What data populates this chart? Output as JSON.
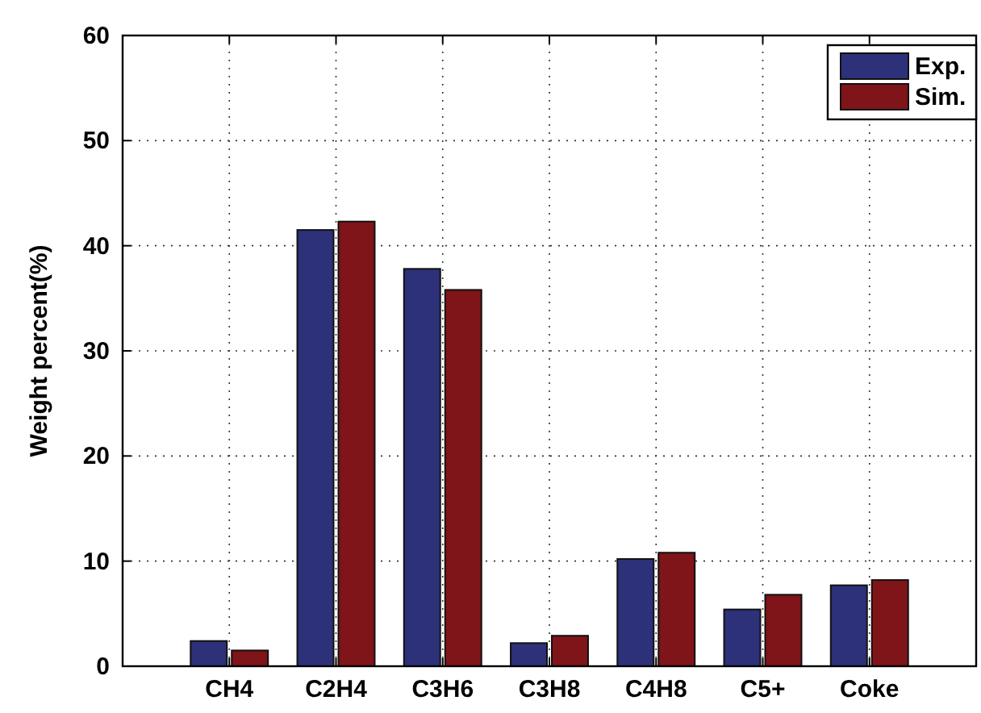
{
  "chart_data": {
    "type": "bar",
    "ylabel": "Weight percent(%)",
    "categories": [
      "CH4",
      "C2H4",
      "C3H6",
      "C3H8",
      "C4H8",
      "C5+",
      "Coke"
    ],
    "series": [
      {
        "name": "Exp.",
        "color": "#2d3179",
        "values": [
          2.4,
          41.5,
          37.8,
          2.2,
          10.2,
          5.4,
          7.7
        ]
      },
      {
        "name": "Sim.",
        "color": "#7f1419",
        "values": [
          1.5,
          42.3,
          35.8,
          2.9,
          10.8,
          6.8,
          8.2
        ]
      }
    ],
    "ylim": [
      0,
      60
    ],
    "yticks": [
      0,
      10,
      20,
      30,
      40,
      50,
      60
    ],
    "grid": true,
    "legend": "top right"
  }
}
